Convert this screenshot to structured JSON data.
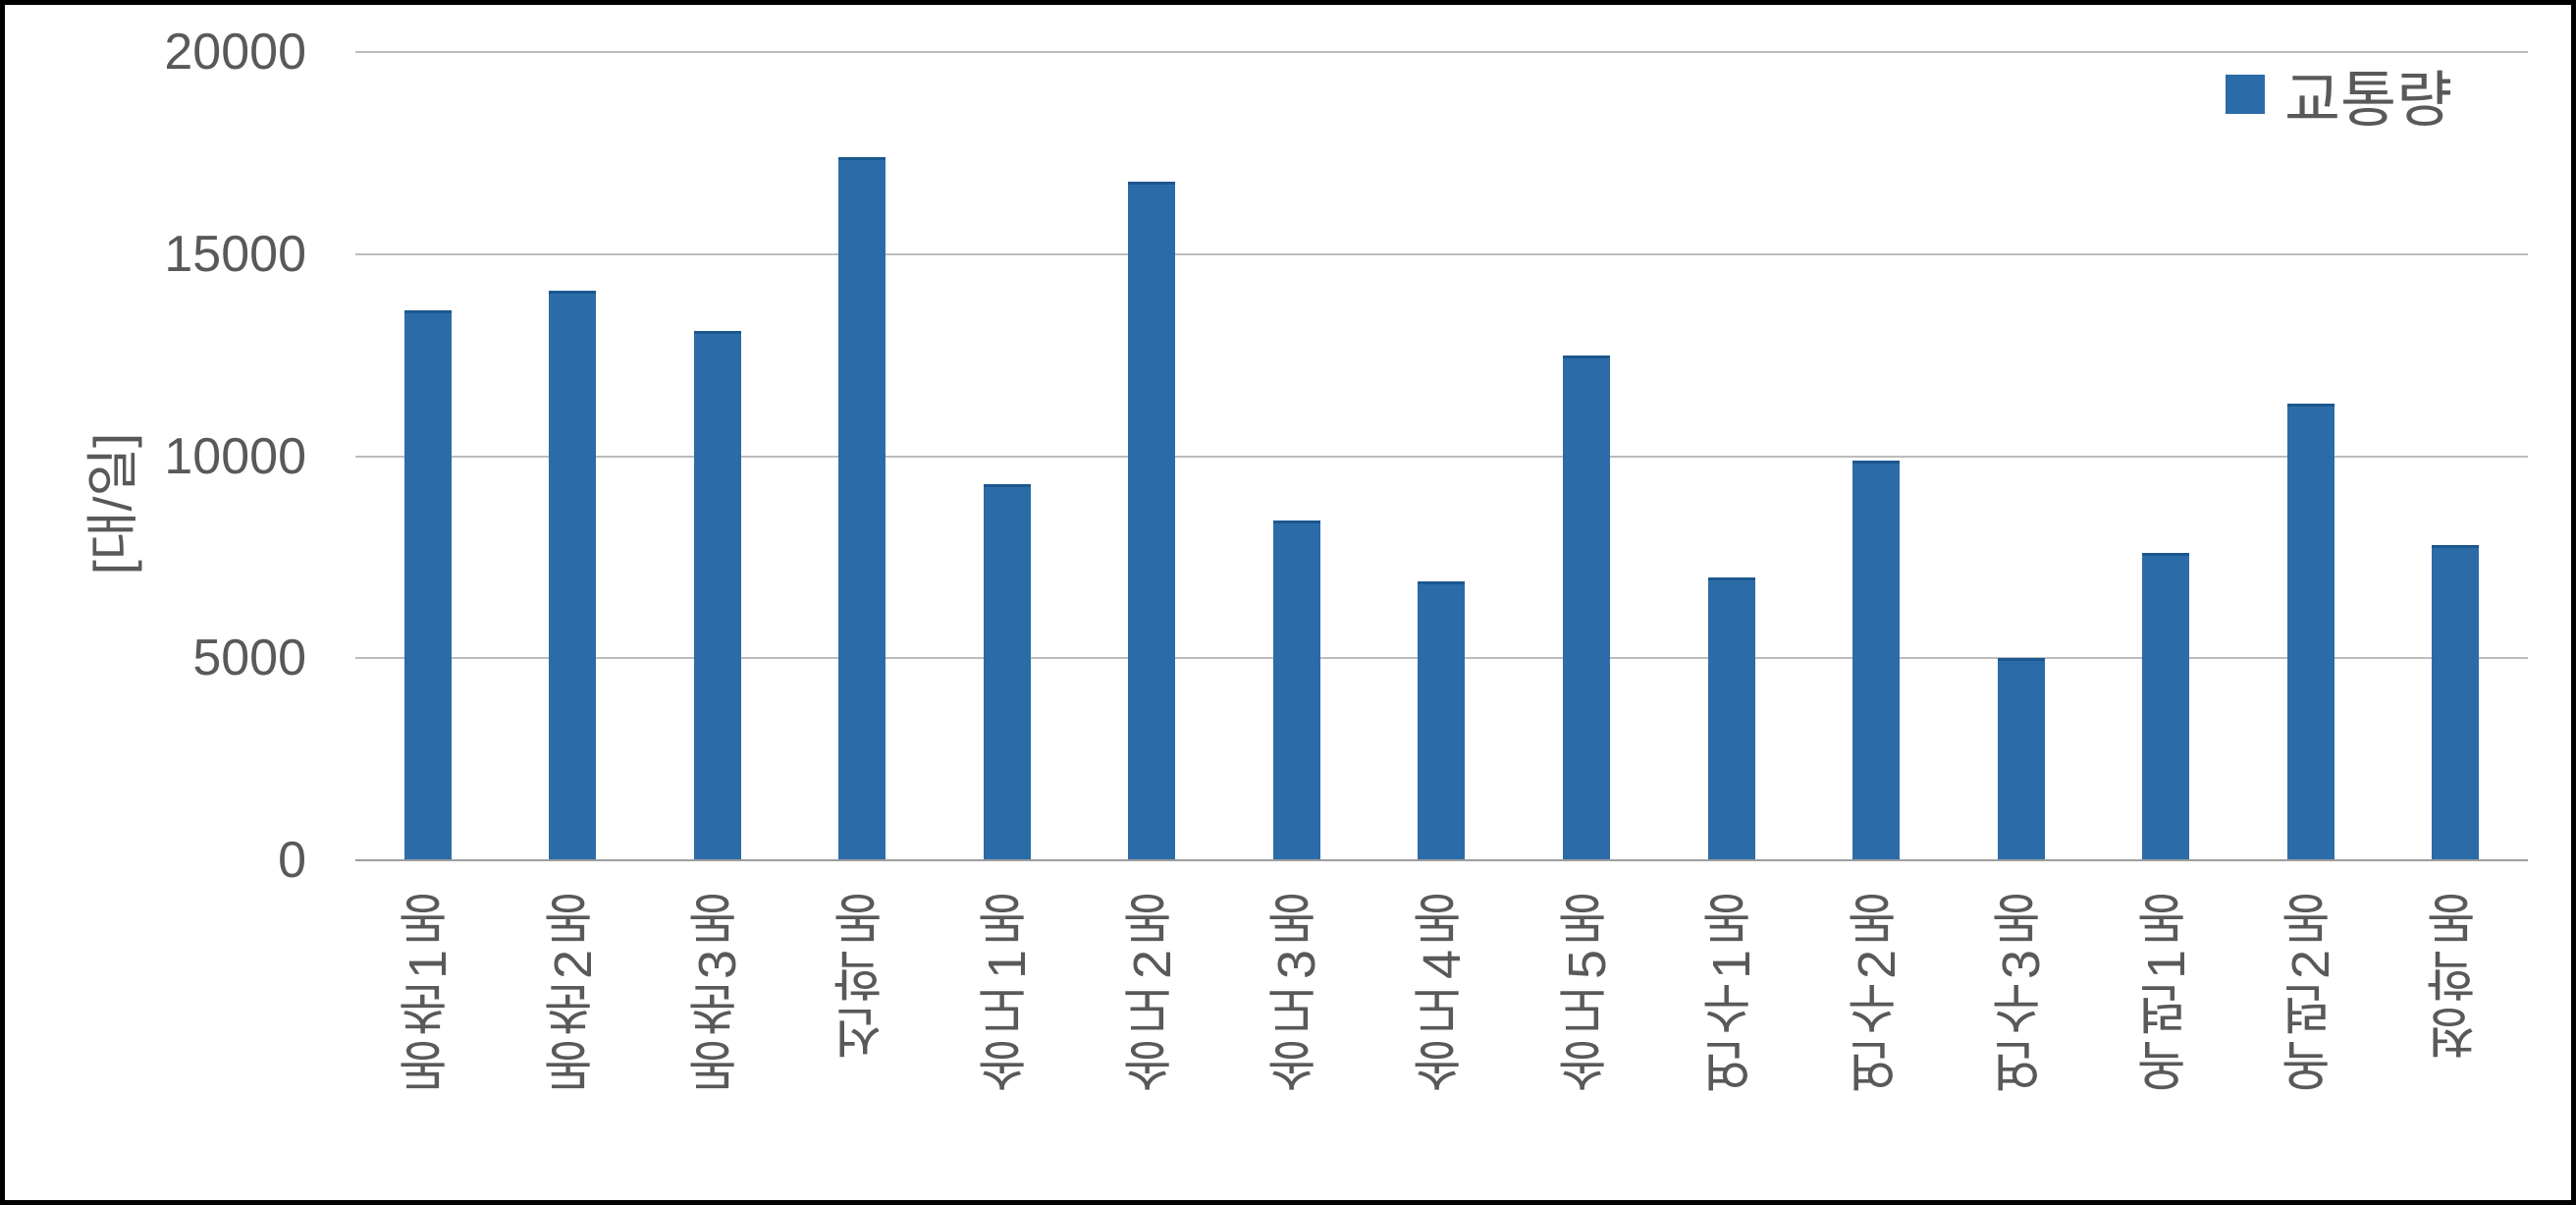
{
  "chart_data": {
    "type": "bar",
    "title": "",
    "categories": [
      "동춘1동",
      "동춘2동",
      "동춘3동",
      "선학동",
      "송도1동",
      "송도2동",
      "송도3동",
      "송도4동",
      "송도5동",
      "연수1동",
      "연수2동",
      "연수3동",
      "옥련1동",
      "옥련2동",
      "청학동"
    ],
    "series": [
      {
        "name": "교통량",
        "values": [
          13600,
          14100,
          13100,
          17400,
          9300,
          16800,
          8400,
          6900,
          12500,
          7000,
          9900,
          5000,
          7600,
          11300,
          7800
        ]
      }
    ],
    "xlabel": "",
    "ylabel": "[대/일]",
    "ylim": [
      0,
      20000
    ],
    "yticks": [
      0,
      5000,
      10000,
      15000,
      20000
    ],
    "grid": true,
    "legend_position": "top-right",
    "colors": {
      "bar_fill": "#2b6ca8",
      "bar_cap": "#1c578f",
      "gridline": "#bdbdbd",
      "axis_line": "#9e9e9e",
      "text": "#595959",
      "frame_border": "#000000",
      "background": "#ffffff"
    }
  },
  "legend": {
    "label": "교통량"
  }
}
